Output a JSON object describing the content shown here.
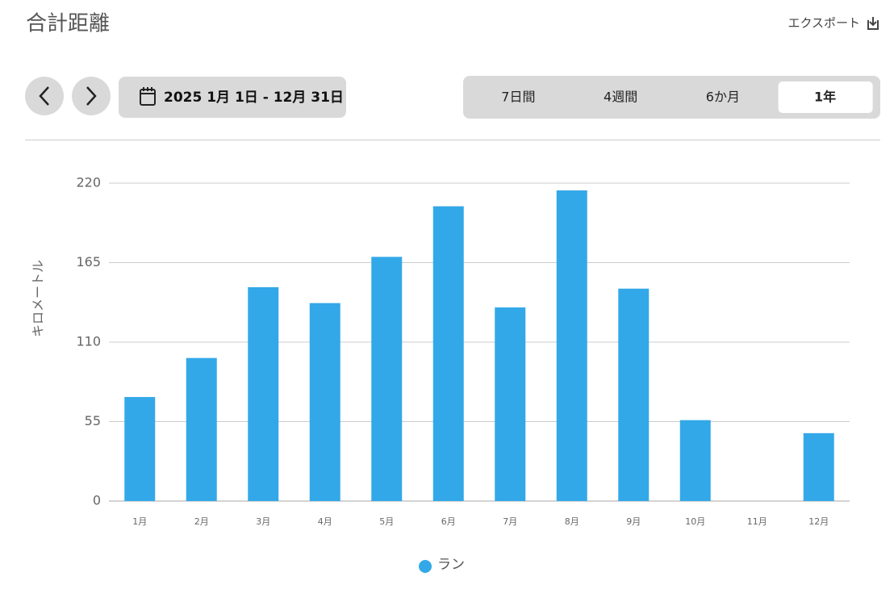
{
  "header": {
    "title": "合計距離",
    "export": "エクスポート"
  },
  "date_range": "2025 1月 1日 - 12月 31日",
  "period_options": [
    "7日間",
    "4週間",
    "6か月",
    "1年"
  ],
  "selected_period": 3,
  "chart_data": {
    "type": "bar",
    "y_axis_label": "キロメートル",
    "categories": [
      "1月",
      "2月",
      "3月",
      "4月",
      "5月",
      "6月",
      "7月",
      "8月",
      "9月",
      "10月",
      "11月",
      "12月"
    ],
    "series": [
      {
        "name": "ラン",
        "color": "#33a8e8",
        "values": [
          72,
          99,
          148,
          137,
          169,
          204,
          134,
          215,
          147,
          56,
          0,
          47
        ]
      }
    ],
    "ylim": [
      0,
      220
    ],
    "yticks": [
      0,
      55,
      110,
      165,
      220
    ],
    "grid": true
  }
}
